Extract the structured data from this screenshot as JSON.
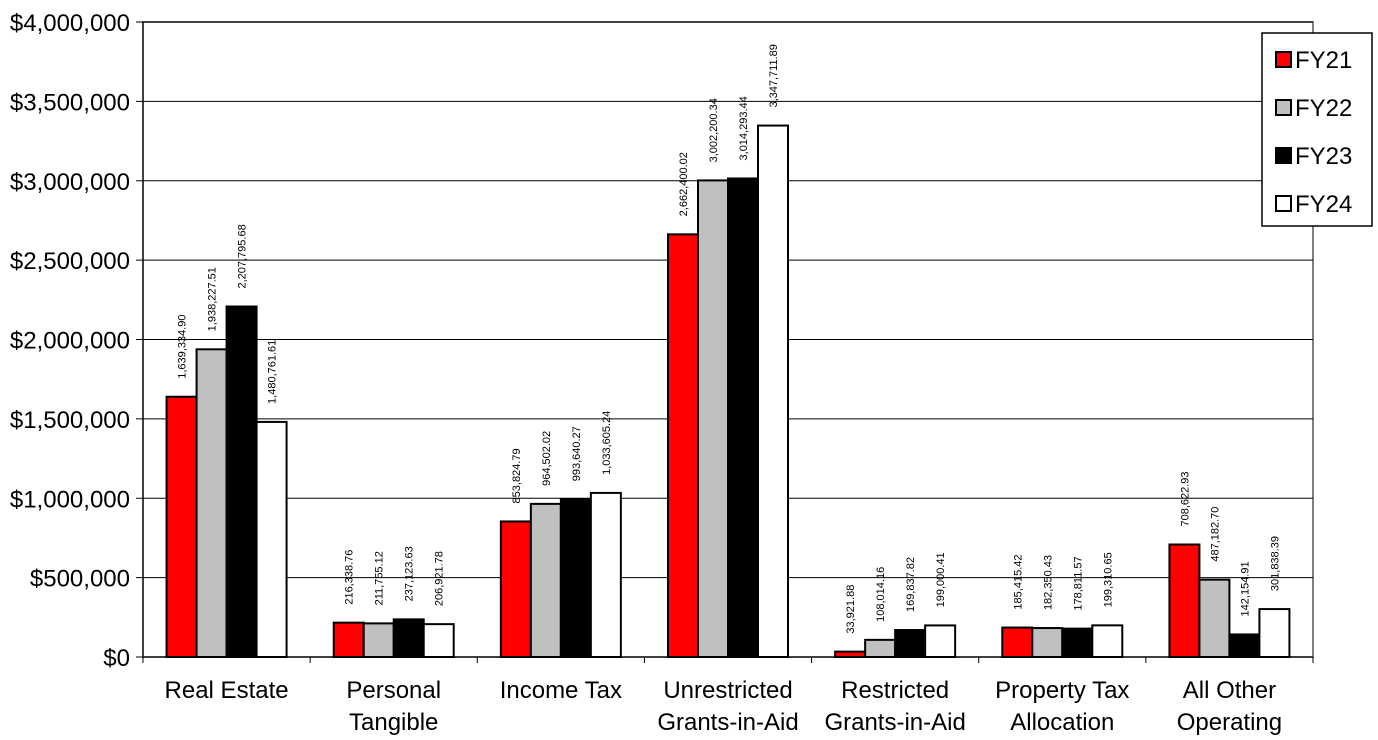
{
  "chart_data": {
    "type": "bar",
    "title": "",
    "xlabel": "",
    "ylabel": "",
    "ylim": [
      0,
      4000000
    ],
    "yticks": [
      0,
      500000,
      1000000,
      1500000,
      2000000,
      2500000,
      3000000,
      3500000,
      4000000
    ],
    "ytick_labels": [
      "$0",
      "$500,000",
      "$1,000,000",
      "$1,500,000",
      "$2,000,000",
      "$2,500,000",
      "$3,000,000",
      "$3,500,000",
      "$4,000,000"
    ],
    "grid": true,
    "legend_position": "top-right",
    "categories": [
      [
        "Real Estate"
      ],
      [
        "Personal",
        "Tangible"
      ],
      [
        "Income Tax"
      ],
      [
        "Unrestricted",
        "Grants-in-Aid"
      ],
      [
        "Restricted",
        "Grants-in-Aid"
      ],
      [
        "Property Tax",
        "Allocation"
      ],
      [
        "All Other",
        "Operating"
      ]
    ],
    "series": [
      {
        "name": "FY21",
        "color": "#ff0000",
        "values": [
          1639334.9,
          216338.76,
          853824.79,
          2662400.02,
          33921.88,
          185415.42,
          708622.93
        ],
        "labels": [
          "1,639,334.90",
          "216,338.76",
          "853,824.79",
          "2,662,400.02",
          "33,921.88",
          "185,415.42",
          "708,622.93"
        ]
      },
      {
        "name": "FY22",
        "color": "#c0c0c0",
        "values": [
          1938227.51,
          211755.12,
          964502.02,
          3002200.34,
          108014.16,
          182350.43,
          487182.7
        ],
        "labels": [
          "1,938,227.51",
          "211,755.12",
          "964,502.02",
          "3,002,200.34",
          "108,014.16",
          "182,350.43",
          "487,182.70"
        ]
      },
      {
        "name": "FY23",
        "color": "#000000",
        "values": [
          2207795.68,
          237123.63,
          993640.27,
          3014293.44,
          169837.82,
          178811.57,
          142154.91
        ],
        "labels": [
          "2,207,795.68",
          "237,123.63",
          "993,640.27",
          "3,014,293.44",
          "169,837.82",
          "178,811.57",
          "142,154.91"
        ]
      },
      {
        "name": "FY24",
        "color": "#ffffff",
        "values": [
          1480761.61,
          206921.78,
          1033605.24,
          3347711.89,
          199000.41,
          199310.65,
          301838.39
        ],
        "labels": [
          "1,480,761.61",
          "206,921.78",
          "1,033,605.24",
          "3,347,711.89",
          "199,000.41",
          "199,310.65",
          "301,838.39"
        ]
      }
    ]
  }
}
